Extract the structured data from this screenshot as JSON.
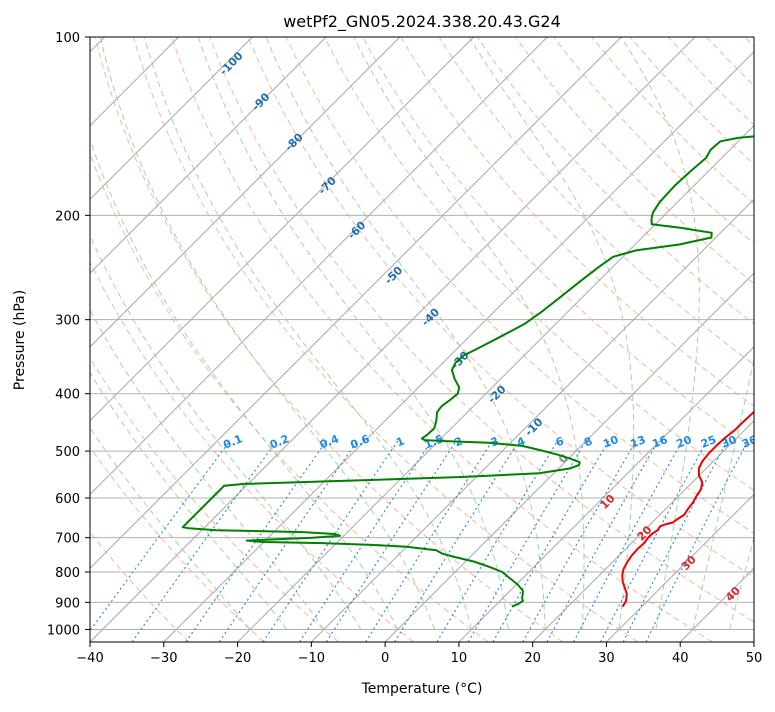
{
  "chart_data": {
    "type": "line",
    "title": "wetPf2_GN05.2024.338.20.43.G24",
    "xlabel": "Temperature (°C)",
    "ylabel": "Pressure (hPa)",
    "xlim": [
      -40,
      50
    ],
    "ylim": [
      1050,
      100
    ],
    "y_scale": "log",
    "x_ticks": [
      -40,
      -30,
      -20,
      -10,
      0,
      10,
      20,
      30,
      40,
      50
    ],
    "y_ticks": [
      100,
      200,
      300,
      400,
      500,
      600,
      700,
      800,
      900,
      1000
    ],
    "grid": true,
    "colors": {
      "temperature": "#ee0000",
      "dewpoint": "#008000",
      "isotherm": "#999999",
      "dry_adiabat": "#f4a582",
      "moist_adiabat": "#90c890",
      "mixing_ratio": "#1e88e5",
      "dry_label": "#d62728",
      "theta_label": "#1f6fb0"
    },
    "series": [
      {
        "key": "temperature",
        "points": [
          [
            27.4,
            915
          ],
          [
            27.1,
            895
          ],
          [
            26.2,
            870
          ],
          [
            25.1,
            850
          ],
          [
            24.0,
            830
          ],
          [
            23.1,
            810
          ],
          [
            22.4,
            790
          ],
          [
            22.0,
            770
          ],
          [
            21.7,
            750
          ],
          [
            21.6,
            730
          ],
          [
            21.7,
            715
          ],
          [
            21.5,
            700
          ],
          [
            21.5,
            690
          ],
          [
            21.8,
            680
          ],
          [
            21.6,
            670
          ],
          [
            22.0,
            665
          ],
          [
            22.8,
            660
          ],
          [
            23.0,
            650
          ],
          [
            23.3,
            640
          ],
          [
            23.0,
            625
          ],
          [
            22.8,
            610
          ],
          [
            22.4,
            595
          ],
          [
            22.1,
            580
          ],
          [
            21.4,
            565
          ],
          [
            20.0,
            550
          ],
          [
            19.0,
            535
          ],
          [
            18.5,
            520
          ],
          [
            18.3,
            505
          ],
          [
            18.3,
            490
          ],
          [
            18.4,
            475
          ],
          [
            18.7,
            460
          ],
          [
            18.7,
            445
          ],
          [
            18.8,
            430
          ],
          [
            19.0,
            415
          ],
          [
            19.2,
            400
          ],
          [
            19.7,
            385
          ],
          [
            19.9,
            370
          ],
          [
            19.1,
            355
          ],
          [
            17.0,
            345
          ],
          [
            14.7,
            335
          ],
          [
            13.0,
            320
          ],
          [
            11.5,
            300
          ],
          [
            10.3,
            290
          ],
          [
            7.6,
            275
          ],
          [
            4.1,
            255
          ],
          [
            0.6,
            232
          ],
          [
            -0.5,
            220
          ],
          [
            -0.7,
            210
          ],
          [
            -0.7,
            200
          ],
          [
            -0.2,
            180
          ],
          [
            0.4,
            166
          ],
          [
            -0.3,
            155
          ],
          [
            -1.4,
            147
          ],
          [
            -3.3,
            137
          ],
          [
            -4.5,
            129
          ],
          [
            -5.8,
            122
          ],
          [
            -6.8,
            117
          ],
          [
            -7.5,
            113
          ],
          [
            -8.2,
            109
          ],
          [
            -8.5,
            105
          ],
          [
            -8.4,
            101
          ],
          [
            -8.3,
            100
          ]
        ]
      },
      {
        "key": "dewpoint",
        "points": [
          [
            12.4,
            915
          ],
          [
            12.9,
            905
          ],
          [
            13.1,
            895
          ],
          [
            12.6,
            885
          ],
          [
            12.1,
            870
          ],
          [
            11.7,
            860
          ],
          [
            10.2,
            840
          ],
          [
            8.3,
            820
          ],
          [
            6.4,
            800
          ],
          [
            4.1,
            785
          ],
          [
            1.1,
            768
          ],
          [
            -2.0,
            755
          ],
          [
            -4.2,
            745
          ],
          [
            -5.5,
            735
          ],
          [
            -10.0,
            725
          ],
          [
            -15.0,
            720
          ],
          [
            -22.0,
            715
          ],
          [
            -30.0,
            712
          ],
          [
            -32.5,
            708
          ],
          [
            -24.0,
            700
          ],
          [
            -20.5,
            695
          ],
          [
            -21.5,
            690
          ],
          [
            -26.0,
            685
          ],
          [
            -38.0,
            680
          ],
          [
            -42.0,
            675
          ],
          [
            -43.0,
            672
          ],
          [
            -43.0,
            572
          ],
          [
            -40.5,
            568
          ],
          [
            -25.0,
            560
          ],
          [
            -12.0,
            553
          ],
          [
            -2.0,
            545
          ],
          [
            1.5,
            535
          ],
          [
            2.3,
            528
          ],
          [
            2.0,
            522
          ],
          [
            0.0,
            514
          ],
          [
            -2.0,
            507
          ],
          [
            -5.0,
            498
          ],
          [
            -8.0,
            490
          ],
          [
            -13.0,
            484
          ],
          [
            -19.0,
            481
          ],
          [
            -22.0,
            479
          ],
          [
            -22.6,
            476
          ],
          [
            -22.4,
            470
          ],
          [
            -22.3,
            458
          ],
          [
            -23.0,
            445
          ],
          [
            -24.1,
            430
          ],
          [
            -24.3,
            420
          ],
          [
            -24.0,
            410
          ],
          [
            -23.8,
            400
          ],
          [
            -24.5,
            390
          ],
          [
            -26.2,
            378
          ],
          [
            -27.8,
            365
          ],
          [
            -28.3,
            355
          ],
          [
            -28.2,
            345
          ],
          [
            -27.2,
            335
          ],
          [
            -25.7,
            320
          ],
          [
            -24.2,
            305
          ],
          [
            -23.5,
            290
          ],
          [
            -23.0,
            275
          ],
          [
            -22.5,
            260
          ],
          [
            -21.9,
            245
          ],
          [
            -21.3,
            235
          ],
          [
            -19.0,
            229
          ],
          [
            -14.0,
            224
          ],
          [
            -10.6,
            218
          ],
          [
            -11.2,
            214
          ],
          [
            -16.0,
            210
          ],
          [
            -20.5,
            207
          ],
          [
            -21.2,
            203
          ],
          [
            -21.9,
            198
          ],
          [
            -22.4,
            190
          ],
          [
            -22.6,
            178
          ],
          [
            -22.4,
            168
          ],
          [
            -22.1,
            160
          ],
          [
            -22.6,
            155
          ],
          [
            -22.4,
            150
          ],
          [
            -20.5,
            148
          ],
          [
            -17.0,
            146.5
          ],
          [
            -15.0,
            145.5
          ],
          [
            -12.0,
            143.5
          ],
          [
            -7.5,
            140
          ],
          [
            -3.0,
            135
          ],
          [
            -0.8,
            130
          ],
          [
            0.8,
            125
          ],
          [
            2.2,
            120
          ],
          [
            3.3,
            116
          ],
          [
            4.0,
            112
          ],
          [
            4.6,
            108
          ],
          [
            5.2,
            104
          ],
          [
            5.6,
            101
          ],
          [
            5.8,
            100
          ]
        ]
      }
    ],
    "dry_adiabat_labels": [
      "10",
      "20",
      "30",
      "40"
    ],
    "theta_labels": [
      "-100",
      "-90",
      "-80",
      "-70",
      "-60",
      "-50",
      "-40",
      "-30",
      "-20",
      "-10",
      "0"
    ],
    "mixing_ratio_labels": [
      "0.1",
      "0.2",
      "0.4",
      "0.6",
      "1",
      "1.5",
      "2",
      "3",
      "4",
      "6",
      "8",
      "10",
      "13",
      "16",
      "20",
      "25",
      "30",
      "36"
    ]
  }
}
